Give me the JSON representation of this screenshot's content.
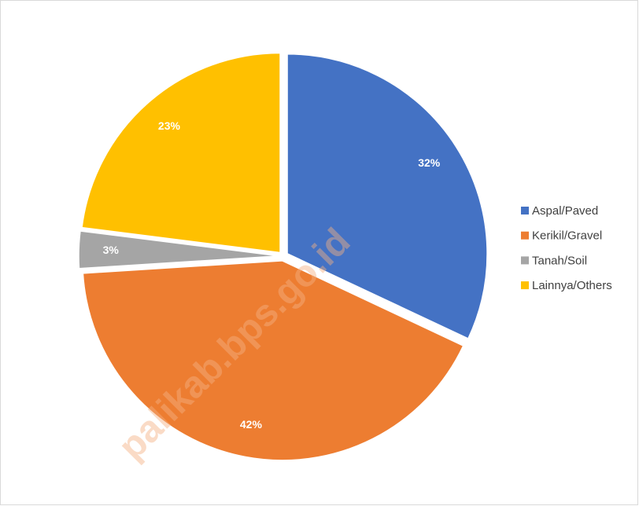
{
  "chart_data": {
    "type": "pie",
    "categories": [
      "Aspal/Paved",
      "Kerikil/Gravel",
      "Tanah/Soil",
      "Lainnya/Others"
    ],
    "values": [
      32,
      42,
      3,
      23
    ],
    "value_labels": [
      "32%",
      "42%",
      "3%",
      "23%"
    ],
    "colors": [
      "#4472c4",
      "#ed7d31",
      "#a5a5a5",
      "#ffc000"
    ],
    "legend": "right",
    "watermark": "palikab.bps.go.id"
  }
}
